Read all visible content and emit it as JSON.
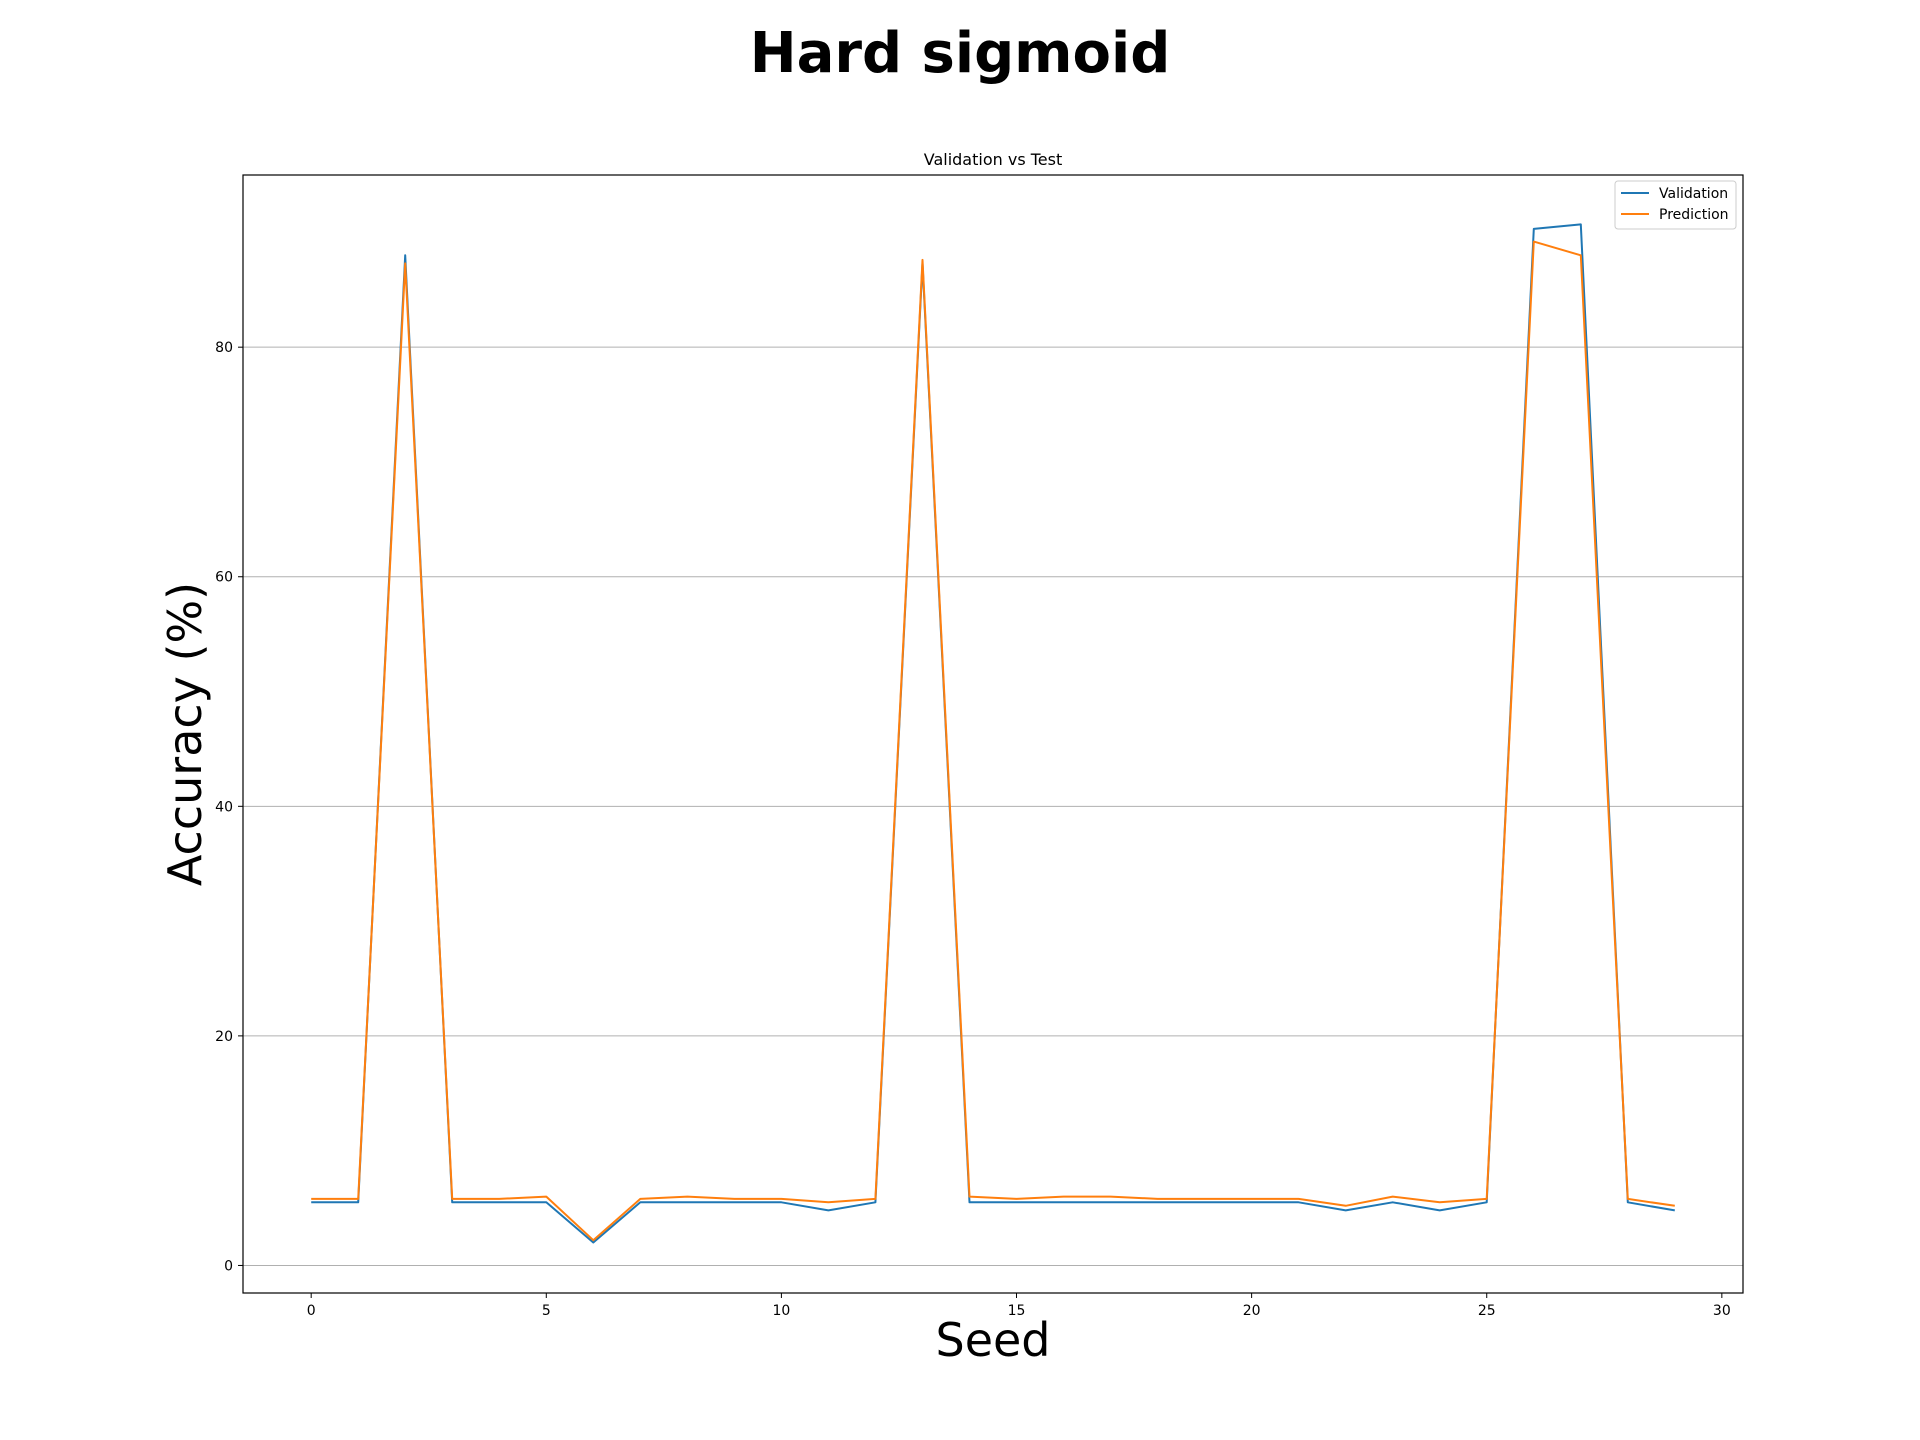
{
  "chart_data": {
    "type": "line",
    "title": "Hard sigmoid",
    "subtitle": "Validation vs Test",
    "xlabel": "Seed",
    "ylabel": "Accuracy (%)",
    "xlim": [
      -1.45,
      30.45
    ],
    "ylim": [
      -2.4,
      95.0
    ],
    "xticks": [
      0,
      5,
      10,
      15,
      20,
      25,
      30
    ],
    "yticks": [
      0,
      20,
      40,
      60,
      80
    ],
    "grid": "y",
    "legend_position": "top-right",
    "x": [
      0,
      1,
      2,
      3,
      4,
      5,
      6,
      7,
      8,
      9,
      10,
      11,
      12,
      13,
      14,
      15,
      16,
      17,
      18,
      19,
      20,
      21,
      22,
      23,
      24,
      25,
      26,
      27,
      28,
      29
    ],
    "series": [
      {
        "name": "Validation",
        "color": "#1f77b4",
        "values": [
          5.5,
          5.5,
          88.0,
          5.5,
          5.5,
          5.5,
          2.0,
          5.5,
          5.5,
          5.5,
          5.5,
          4.8,
          5.5,
          87.3,
          5.5,
          5.5,
          5.5,
          5.5,
          5.5,
          5.5,
          5.5,
          5.5,
          4.8,
          5.5,
          4.8,
          5.5,
          90.3,
          90.7,
          5.5,
          4.8
        ]
      },
      {
        "name": "Prediction",
        "color": "#ff7f0e",
        "values": [
          5.8,
          5.8,
          87.3,
          5.8,
          5.8,
          6.0,
          2.2,
          5.8,
          6.0,
          5.8,
          5.8,
          5.5,
          5.8,
          87.6,
          6.0,
          5.8,
          6.0,
          6.0,
          5.8,
          5.8,
          5.8,
          5.8,
          5.2,
          6.0,
          5.5,
          5.8,
          89.2,
          88.0,
          5.8,
          5.2
        ]
      }
    ]
  }
}
